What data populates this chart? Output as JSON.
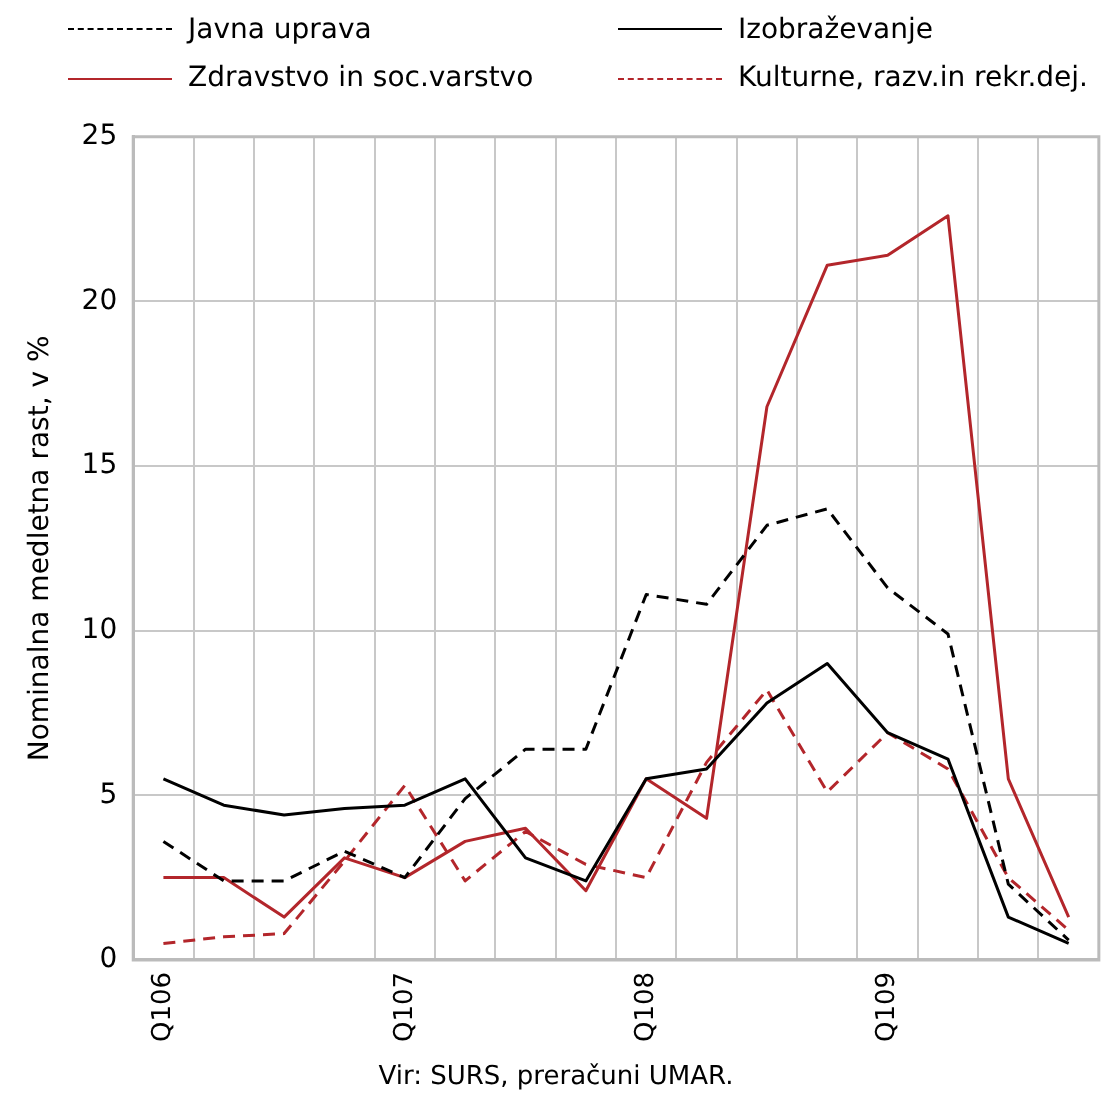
{
  "chart_data": {
    "type": "line",
    "ylabel": "Nominalna medletna rast, v %",
    "categories": [
      "Q106",
      null,
      null,
      null,
      "Q107",
      null,
      null,
      null,
      "Q108",
      null,
      null,
      null,
      "Q109",
      null,
      null,
      null
    ],
    "series": [
      {
        "name": "Javna uprava",
        "color": "#000000",
        "line_style": "dashed",
        "values": [
          3.6,
          2.4,
          2.4,
          3.3,
          2.5,
          4.9,
          6.4,
          6.4,
          11.1,
          10.8,
          13.2,
          13.7,
          11.3,
          9.9,
          2.3,
          0.6
        ]
      },
      {
        "name": "Izobraževanje",
        "color": "#000000",
        "line_style": "solid",
        "values": [
          5.5,
          4.7,
          4.4,
          4.6,
          4.7,
          5.5,
          3.1,
          2.4,
          5.5,
          5.8,
          7.8,
          9.0,
          6.9,
          6.1,
          1.3,
          0.5
        ]
      },
      {
        "name": "Zdravstvo in soc.varstvo",
        "color": "#b3262b",
        "line_style": "solid",
        "values": [
          2.5,
          2.5,
          1.3,
          3.1,
          2.5,
          3.6,
          4.0,
          2.1,
          5.5,
          4.3,
          16.8,
          21.1,
          21.4,
          22.6,
          5.5,
          1.3
        ]
      },
      {
        "name": "Kulturne, razv.in rekr.dej.",
        "color": "#b3262b",
        "line_style": "dashed",
        "values": [
          0.5,
          0.7,
          0.8,
          3.0,
          5.3,
          2.4,
          3.9,
          2.9,
          2.5,
          6.0,
          8.2,
          5.1,
          6.9,
          5.8,
          2.5,
          0.9
        ]
      }
    ],
    "ylim": [
      0,
      25
    ],
    "yticks": [
      0,
      5,
      10,
      15,
      20,
      25
    ],
    "grid": true,
    "legend": "top",
    "marker": "none",
    "annotations": [
      "Vir: SURS, preračuni UMAR."
    ]
  }
}
